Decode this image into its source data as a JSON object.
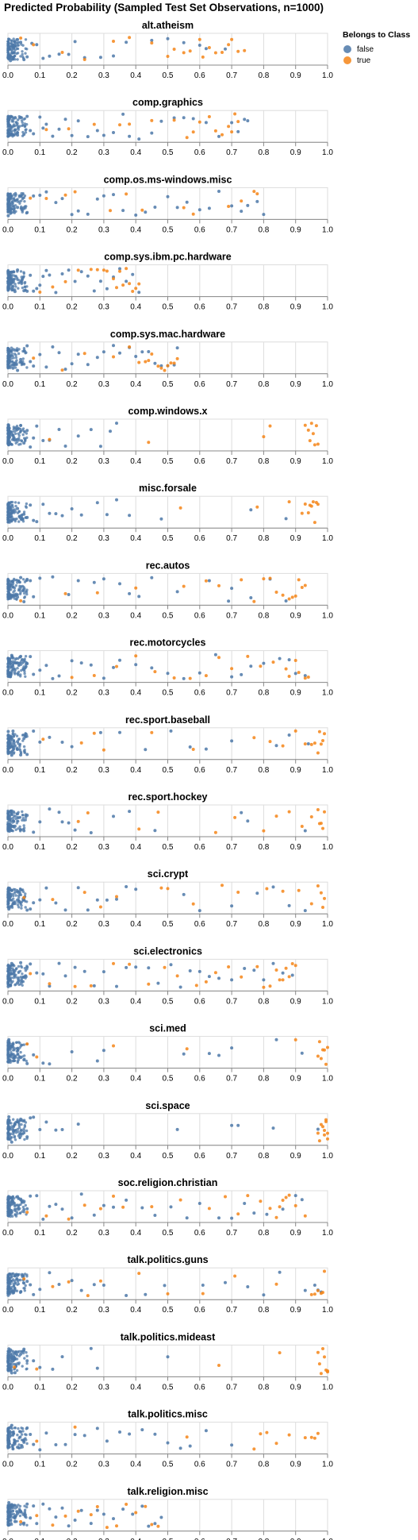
{
  "chart_title": "Predicted Probability (Sampled Test Set Observations, n=1000)",
  "legend": {
    "title": "Belongs to Class",
    "items": [
      {
        "label": "false",
        "color": "#4c78a8"
      },
      {
        "label": "true",
        "color": "#f58518"
      }
    ]
  },
  "chart_data": {
    "type": "scatter",
    "note_x": "predicted probability per sampled observation, faceted by class, vertical jitter",
    "xlim": [
      0,
      1
    ],
    "x_ticks": [
      "0.0",
      "0.1",
      "0.2",
      "0.3",
      "0.4",
      "0.5",
      "0.6",
      "0.7",
      "0.8",
      "0.9",
      "1.0"
    ],
    "grid": true,
    "legend_position": "top-right",
    "facets": [
      {
        "class": "alt.atheism",
        "false": [
          0.001,
          0.003,
          0.005,
          0.008,
          0.012,
          0.016,
          0.022,
          0.03,
          0.04,
          0.05,
          0.06,
          0.075,
          0.09,
          0.11,
          0.13,
          0.16,
          0.19,
          0.21,
          0.24,
          0.29,
          0.33,
          0.37,
          0.45,
          0.5,
          0.55,
          0.6,
          0.62,
          0.68
        ],
        "true": [
          0.04,
          0.08,
          0.17,
          0.24,
          0.33,
          0.38,
          0.45,
          0.5,
          0.52,
          0.55,
          0.57,
          0.6,
          0.61,
          0.63,
          0.65,
          0.67,
          0.69,
          0.7,
          0.72,
          0.74
        ]
      },
      {
        "class": "comp.graphics",
        "false": [
          0.001,
          0.003,
          0.005,
          0.008,
          0.012,
          0.016,
          0.022,
          0.03,
          0.04,
          0.05,
          0.06,
          0.07,
          0.08,
          0.1,
          0.11,
          0.12,
          0.14,
          0.16,
          0.18,
          0.2,
          0.22,
          0.25,
          0.28,
          0.3,
          0.33,
          0.36,
          0.38,
          0.41,
          0.45,
          0.48,
          0.52,
          0.55,
          0.58,
          0.62,
          0.66,
          0.7,
          0.72,
          0.74,
          0.75
        ],
        "true": [
          0.12,
          0.19,
          0.27,
          0.35,
          0.38,
          0.45,
          0.52,
          0.56,
          0.58,
          0.6,
          0.63,
          0.65,
          0.67,
          0.69,
          0.7,
          0.71,
          0.72
        ]
      },
      {
        "class": "comp.os.ms-windows.misc",
        "false": [
          0.001,
          0.003,
          0.005,
          0.008,
          0.012,
          0.016,
          0.022,
          0.03,
          0.04,
          0.05,
          0.06,
          0.08,
          0.1,
          0.12,
          0.15,
          0.17,
          0.2,
          0.22,
          0.25,
          0.28,
          0.3,
          0.33,
          0.36,
          0.4,
          0.43,
          0.46,
          0.5,
          0.53,
          0.56,
          0.6,
          0.63,
          0.66,
          0.7,
          0.73,
          0.75,
          0.78,
          0.8
        ],
        "true": [
          0.07,
          0.12,
          0.18,
          0.21,
          0.32,
          0.37,
          0.42,
          0.55,
          0.58,
          0.69,
          0.73,
          0.77,
          0.78
        ]
      },
      {
        "class": "comp.sys.ibm.pc.hardware",
        "false": [
          0.001,
          0.003,
          0.005,
          0.008,
          0.012,
          0.016,
          0.022,
          0.03,
          0.04,
          0.05,
          0.06,
          0.07,
          0.08,
          0.09,
          0.1,
          0.11,
          0.12,
          0.13,
          0.15,
          0.17,
          0.19,
          0.21,
          0.23,
          0.25,
          0.27,
          0.29,
          0.31,
          0.33,
          0.35,
          0.37,
          0.39,
          0.41
        ],
        "true": [
          0.1,
          0.14,
          0.18,
          0.22,
          0.26,
          0.28,
          0.3,
          0.31,
          0.33,
          0.34,
          0.35,
          0.36,
          0.37,
          0.38,
          0.39,
          0.4,
          0.41
        ]
      },
      {
        "class": "comp.sys.mac.hardware",
        "false": [
          0.001,
          0.003,
          0.005,
          0.008,
          0.012,
          0.016,
          0.022,
          0.03,
          0.04,
          0.05,
          0.06,
          0.07,
          0.08,
          0.1,
          0.12,
          0.14,
          0.16,
          0.18,
          0.2,
          0.22,
          0.25,
          0.28,
          0.3,
          0.33,
          0.35,
          0.38,
          0.4,
          0.42,
          0.44,
          0.46,
          0.48,
          0.5,
          0.52,
          0.53
        ],
        "true": [
          0.08,
          0.17,
          0.24,
          0.33,
          0.38,
          0.41,
          0.43,
          0.44,
          0.45,
          0.47,
          0.48,
          0.49,
          0.5,
          0.51,
          0.52,
          0.53
        ]
      },
      {
        "class": "comp.windows.x",
        "false": [
          0.001,
          0.003,
          0.005,
          0.008,
          0.012,
          0.016,
          0.022,
          0.03,
          0.04,
          0.05,
          0.06,
          0.07,
          0.08,
          0.09,
          0.11,
          0.13,
          0.16,
          0.18,
          0.22,
          0.26,
          0.29,
          0.32,
          0.34
        ],
        "true": [
          0.13,
          0.44,
          0.8,
          0.82,
          0.93,
          0.94,
          0.945,
          0.95,
          0.955,
          0.96,
          0.965,
          0.97
        ]
      },
      {
        "class": "misc.forsale",
        "false": [
          0.001,
          0.003,
          0.005,
          0.008,
          0.012,
          0.016,
          0.022,
          0.03,
          0.04,
          0.05,
          0.06,
          0.07,
          0.08,
          0.09,
          0.11,
          0.13,
          0.15,
          0.17,
          0.2,
          0.23,
          0.28,
          0.31,
          0.34,
          0.38,
          0.48,
          0.76,
          0.87
        ],
        "true": [
          0.54,
          0.78,
          0.88,
          0.92,
          0.93,
          0.94,
          0.945,
          0.95,
          0.955,
          0.96,
          0.965,
          0.97
        ]
      },
      {
        "class": "rec.autos",
        "false": [
          0.001,
          0.003,
          0.005,
          0.008,
          0.012,
          0.016,
          0.022,
          0.03,
          0.04,
          0.05,
          0.06,
          0.07,
          0.08,
          0.1,
          0.14,
          0.19,
          0.22,
          0.27,
          0.3,
          0.35,
          0.38,
          0.41,
          0.45,
          0.53,
          0.63,
          0.69,
          0.7,
          0.76,
          0.82,
          0.87
        ],
        "true": [
          0.04,
          0.18,
          0.28,
          0.4,
          0.55,
          0.62,
          0.66,
          0.73,
          0.77,
          0.8,
          0.82,
          0.84,
          0.86,
          0.88,
          0.89,
          0.9,
          0.91,
          0.92,
          0.93
        ]
      },
      {
        "class": "rec.motorcycles",
        "false": [
          0.001,
          0.003,
          0.005,
          0.008,
          0.012,
          0.016,
          0.022,
          0.03,
          0.04,
          0.05,
          0.06,
          0.07,
          0.08,
          0.1,
          0.12,
          0.14,
          0.16,
          0.2,
          0.23,
          0.26,
          0.3,
          0.33,
          0.35,
          0.4,
          0.45,
          0.5,
          0.55,
          0.6,
          0.65,
          0.7,
          0.73,
          0.76,
          0.8,
          0.85,
          0.88,
          0.9,
          0.93
        ],
        "true": [
          0.2,
          0.27,
          0.34,
          0.4,
          0.46,
          0.52,
          0.57,
          0.62,
          0.66,
          0.7,
          0.75,
          0.79,
          0.83,
          0.87,
          0.88,
          0.9,
          0.91,
          0.93,
          0.94
        ]
      },
      {
        "class": "rec.sport.baseball",
        "false": [
          0.001,
          0.003,
          0.005,
          0.008,
          0.012,
          0.016,
          0.022,
          0.03,
          0.04,
          0.05,
          0.06,
          0.08,
          0.1,
          0.13,
          0.17,
          0.2,
          0.29,
          0.35,
          0.43,
          0.51,
          0.57,
          0.62,
          0.7,
          0.84,
          0.88,
          0.94
        ],
        "true": [
          0.11,
          0.23,
          0.27,
          0.3,
          0.45,
          0.58,
          0.77,
          0.82,
          0.86,
          0.9,
          0.93,
          0.95,
          0.96,
          0.97,
          0.975,
          0.98,
          0.985,
          0.99
        ]
      },
      {
        "class": "rec.sport.hockey",
        "false": [
          0.001,
          0.003,
          0.005,
          0.008,
          0.012,
          0.016,
          0.022,
          0.03,
          0.04,
          0.05,
          0.06,
          0.08,
          0.1,
          0.13,
          0.16,
          0.17,
          0.19,
          0.21,
          0.26,
          0.33,
          0.38,
          0.46,
          0.73,
          0.75,
          0.93
        ],
        "true": [
          0.22,
          0.25,
          0.41,
          0.47,
          0.65,
          0.71,
          0.8,
          0.84,
          0.88,
          0.92,
          0.95,
          0.97,
          0.975,
          0.98,
          0.985,
          0.99
        ]
      },
      {
        "class": "sci.crypt",
        "false": [
          0.001,
          0.003,
          0.005,
          0.008,
          0.012,
          0.016,
          0.022,
          0.03,
          0.04,
          0.05,
          0.06,
          0.07,
          0.08,
          0.1,
          0.12,
          0.15,
          0.18,
          0.22,
          0.25,
          0.28,
          0.31,
          0.34,
          0.37,
          0.4,
          0.55,
          0.6,
          0.7,
          0.78,
          0.83,
          0.88,
          0.93
        ],
        "true": [
          0.05,
          0.14,
          0.24,
          0.29,
          0.34,
          0.48,
          0.5,
          0.58,
          0.67,
          0.72,
          0.81,
          0.86,
          0.91,
          0.95,
          0.97,
          0.98,
          0.985,
          0.99
        ]
      },
      {
        "class": "sci.electronics",
        "false": [
          0.001,
          0.003,
          0.005,
          0.008,
          0.012,
          0.016,
          0.022,
          0.03,
          0.04,
          0.05,
          0.06,
          0.07,
          0.09,
          0.11,
          0.13,
          0.16,
          0.18,
          0.21,
          0.24,
          0.27,
          0.3,
          0.34,
          0.37,
          0.4,
          0.44,
          0.47,
          0.51,
          0.54,
          0.57,
          0.6,
          0.63,
          0.66,
          0.7,
          0.74,
          0.77,
          0.8,
          0.83,
          0.86,
          0.89
        ],
        "true": [
          0.07,
          0.13,
          0.21,
          0.26,
          0.33,
          0.38,
          0.44,
          0.49,
          0.53,
          0.59,
          0.62,
          0.65,
          0.69,
          0.73,
          0.78,
          0.8,
          0.82,
          0.84,
          0.85,
          0.86,
          0.87,
          0.88,
          0.89,
          0.9
        ]
      },
      {
        "class": "sci.med",
        "false": [
          0.001,
          0.003,
          0.005,
          0.008,
          0.012,
          0.016,
          0.022,
          0.03,
          0.04,
          0.05,
          0.06,
          0.08,
          0.11,
          0.13,
          0.2,
          0.28,
          0.3,
          0.55,
          0.63,
          0.66,
          0.7,
          0.84,
          0.92
        ],
        "true": [
          0.06,
          0.09,
          0.33,
          0.56,
          0.9,
          0.97,
          0.975,
          0.98,
          0.985,
          0.99,
          0.995,
          1.0
        ]
      },
      {
        "class": "sci.space",
        "false": [
          0.001,
          0.003,
          0.005,
          0.008,
          0.012,
          0.016,
          0.022,
          0.03,
          0.04,
          0.05,
          0.06,
          0.07,
          0.08,
          0.1,
          0.12,
          0.15,
          0.17,
          0.22,
          0.53,
          0.7,
          0.72,
          0.83,
          0.97
        ],
        "true": [
          0.97,
          0.975,
          0.98,
          0.985,
          0.99,
          0.995,
          1.0,
          1.0,
          0.995,
          0.99
        ]
      },
      {
        "class": "soc.religion.christian",
        "false": [
          0.001,
          0.003,
          0.005,
          0.008,
          0.012,
          0.016,
          0.022,
          0.03,
          0.04,
          0.05,
          0.06,
          0.07,
          0.09,
          0.11,
          0.13,
          0.15,
          0.17,
          0.2,
          0.23,
          0.27,
          0.3,
          0.33,
          0.37,
          0.42,
          0.46,
          0.51,
          0.56,
          0.6,
          0.66,
          0.7,
          0.74,
          0.77,
          0.81,
          0.86,
          0.9,
          0.92
        ],
        "true": [
          0.06,
          0.12,
          0.19,
          0.24,
          0.29,
          0.33,
          0.36,
          0.45,
          0.54,
          0.63,
          0.68,
          0.72,
          0.75,
          0.79,
          0.82,
          0.84,
          0.85,
          0.86,
          0.87,
          0.88,
          0.9,
          0.93
        ]
      },
      {
        "class": "talk.politics.guns",
        "false": [
          0.001,
          0.003,
          0.005,
          0.008,
          0.012,
          0.016,
          0.022,
          0.03,
          0.04,
          0.05,
          0.06,
          0.07,
          0.08,
          0.1,
          0.13,
          0.16,
          0.2,
          0.23,
          0.27,
          0.3,
          0.37,
          0.43,
          0.49,
          0.61,
          0.68,
          0.75,
          0.8,
          0.85,
          0.93,
          0.96,
          0.97,
          0.98
        ],
        "true": [
          0.05,
          0.14,
          0.19,
          0.25,
          0.29,
          0.41,
          0.5,
          0.61,
          0.71,
          0.84,
          0.95,
          0.96,
          0.97,
          0.98,
          0.985,
          0.99
        ]
      },
      {
        "class": "talk.politics.mideast",
        "false": [
          0.001,
          0.003,
          0.005,
          0.008,
          0.012,
          0.016,
          0.022,
          0.03,
          0.04,
          0.05,
          0.06,
          0.08,
          0.1,
          0.14,
          0.17,
          0.26,
          0.28,
          0.5
        ],
        "true": [
          0.02,
          0.09,
          0.66,
          0.85,
          0.97,
          0.975,
          0.98,
          0.985,
          0.99,
          0.995,
          1.0,
          1.0
        ]
      },
      {
        "class": "talk.politics.misc",
        "false": [
          0.001,
          0.003,
          0.005,
          0.008,
          0.012,
          0.016,
          0.022,
          0.03,
          0.04,
          0.05,
          0.06,
          0.07,
          0.08,
          0.1,
          0.12,
          0.15,
          0.18,
          0.21,
          0.24,
          0.28,
          0.31,
          0.35,
          0.38,
          0.42,
          0.46,
          0.5,
          0.54,
          0.57,
          0.62,
          0.7
        ],
        "true": [
          0.09,
          0.21,
          0.56,
          0.77,
          0.79,
          0.81,
          0.84,
          0.88,
          0.93,
          0.95,
          0.96,
          0.97
        ]
      },
      {
        "class": "talk.religion.misc",
        "false": [
          0.001,
          0.003,
          0.005,
          0.008,
          0.012,
          0.016,
          0.022,
          0.03,
          0.04,
          0.05,
          0.06,
          0.07,
          0.08,
          0.09,
          0.11,
          0.13,
          0.15,
          0.17,
          0.19,
          0.21,
          0.23,
          0.26,
          0.28,
          0.3,
          0.33,
          0.36,
          0.39,
          0.42,
          0.44,
          0.46,
          0.48
        ],
        "true": [
          0.04,
          0.09,
          0.14,
          0.18,
          0.22,
          0.26,
          0.28,
          0.31,
          0.34,
          0.37,
          0.4,
          0.43,
          0.45,
          0.47
        ]
      }
    ]
  }
}
